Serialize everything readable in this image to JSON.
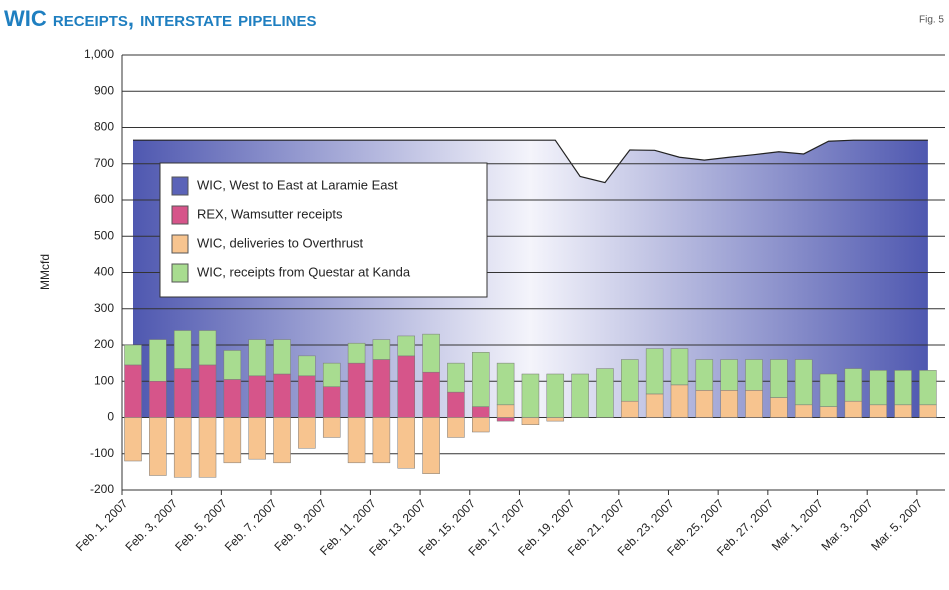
{
  "chart_data": {
    "type": "bar",
    "stacked": true,
    "title": "WIC receipts, interstate pipelines",
    "figure_label": "Fig. 5",
    "y_label": "MMcfd",
    "categories": [
      "Feb. 1, 2007",
      null,
      "Feb. 3, 2007",
      null,
      "Feb. 5, 2007",
      null,
      "Feb. 7, 2007",
      null,
      "Feb. 9, 2007",
      null,
      "Feb. 11, 2007",
      null,
      "Feb. 13, 2007",
      null,
      "Feb. 15, 2007",
      null,
      "Feb. 17, 2007",
      null,
      "Feb. 19, 2007",
      null,
      "Feb. 21, 2007",
      null,
      "Feb. 23, 2007",
      null,
      "Feb. 25, 2007",
      null,
      "Feb. 27, 2007",
      null,
      "Mar. 1, 2007",
      null,
      "Mar. 3, 2007",
      null,
      "Mar. 5, 2007"
    ],
    "series": [
      {
        "name": "WIC, West to East at Laramie East",
        "type": "area",
        "color": "#5b63b8",
        "values": [
          765,
          765,
          765,
          765,
          765,
          765,
          765,
          765,
          765,
          765,
          765,
          765,
          765,
          765,
          765,
          765,
          765,
          765,
          665,
          648,
          738,
          737,
          718,
          710,
          718,
          725,
          733,
          727,
          762,
          765,
          765,
          765,
          765
        ]
      },
      {
        "name": "REX, Wamsutter receipts",
        "color": "#d6558a",
        "values": [
          145,
          100,
          135,
          145,
          105,
          115,
          120,
          115,
          85,
          150,
          160,
          170,
          125,
          70,
          30,
          -10,
          0,
          0,
          0,
          0,
          0,
          0,
          0,
          0,
          0,
          0,
          0,
          0,
          0,
          0,
          0,
          0,
          0
        ]
      },
      {
        "name": "WIC, deliveries to Overthrust",
        "color": "#f7c48f",
        "values": [
          -120,
          -160,
          -165,
          -165,
          -125,
          -115,
          -125,
          -85,
          -55,
          -125,
          -125,
          -140,
          -155,
          -55,
          -40,
          35,
          -20,
          -10,
          0,
          0,
          45,
          65,
          90,
          75,
          75,
          75,
          55,
          35,
          30,
          45,
          35,
          35,
          35
        ]
      },
      {
        "name": "WIC, receipts from Questar at Kanda",
        "color": "#a8dc90",
        "values": [
          55,
          115,
          105,
          95,
          80,
          100,
          95,
          55,
          65,
          55,
          55,
          55,
          105,
          80,
          150,
          115,
          120,
          120,
          120,
          135,
          115,
          125,
          100,
          85,
          85,
          85,
          105,
          125,
          90,
          90,
          95,
          95,
          95
        ]
      }
    ],
    "ylim": [
      -200,
      1000
    ],
    "yticks": [
      -200,
      -100,
      0,
      100,
      200,
      300,
      400,
      500,
      600,
      700,
      800,
      {
        "value": 900,
        "label": "900"
      },
      {
        "value": 1000,
        "label": "1,000"
      }
    ],
    "grid": true
  }
}
